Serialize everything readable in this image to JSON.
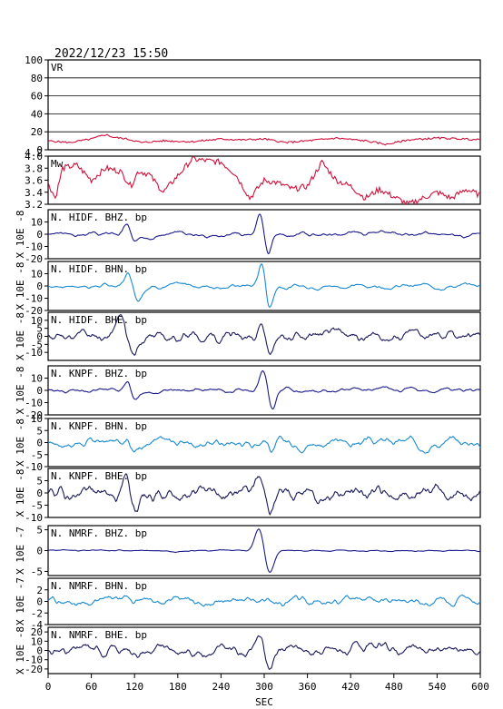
{
  "header": {
    "datetime": "2022/12/23  15:50"
  },
  "chart_data": {
    "type": "line",
    "x_axis": {
      "label": "SEC",
      "range": [
        0,
        600
      ],
      "ticks": [
        "0",
        "60",
        "120",
        "180",
        "240",
        "300",
        "360",
        "420",
        "480",
        "540",
        "600"
      ]
    },
    "panels": [
      {
        "name": "VR",
        "label": "VR",
        "color": "#d0103a",
        "ylim": [
          0,
          100
        ],
        "ticks": [
          "0",
          "20",
          "40",
          "60",
          "80",
          "100"
        ],
        "grid": true,
        "unit": "",
        "x": [
          0,
          30,
          60,
          80,
          90,
          110,
          130,
          160,
          200,
          240,
          270,
          300,
          330,
          360,
          400,
          440,
          470,
          500,
          540,
          580,
          600
        ],
        "y": [
          10,
          8,
          12,
          17,
          14,
          12,
          8,
          10,
          9,
          12,
          11,
          12,
          8,
          10,
          13,
          10,
          6,
          11,
          13,
          12,
          11
        ]
      },
      {
        "name": "Mw",
        "label": "Mw",
        "color": "#d0103a",
        "ylim": [
          3.2,
          4.0
        ],
        "ticks": [
          "3.2",
          "3.4",
          "3.6",
          "3.8",
          "4.0",
          "4.2"
        ],
        "grid": false,
        "unit": "",
        "x": [
          0,
          10,
          20,
          40,
          60,
          80,
          100,
          115,
          125,
          140,
          160,
          200,
          240,
          260,
          280,
          300,
          320,
          340,
          360,
          380,
          400,
          420,
          440,
          460,
          500,
          540,
          560,
          580,
          600
        ],
        "y": [
          3.55,
          3.3,
          3.8,
          3.85,
          3.6,
          3.8,
          3.75,
          3.5,
          3.75,
          3.7,
          3.4,
          3.95,
          3.9,
          3.7,
          3.3,
          3.6,
          3.55,
          3.45,
          3.5,
          3.9,
          3.6,
          3.5,
          3.3,
          3.45,
          3.2,
          3.4,
          3.3,
          3.45,
          3.35
        ]
      },
      {
        "name": "N.HIDF.BHZ.bp",
        "label": "N. HIDF. BHZ. bp",
        "color": "#1a1a8c",
        "ylim": [
          -20,
          20
        ],
        "ticks": [
          "-20",
          "-10",
          "0",
          "10"
        ],
        "unit": "X 10E -8",
        "events": [
          {
            "t": 115,
            "amp": 9,
            "w": 7
          },
          {
            "t": 300,
            "amp": 20,
            "w": 7
          }
        ],
        "noise": 1.5,
        "seed": 3
      },
      {
        "name": "N.HIDF.BHN.bp",
        "label": "N. HIDF. BHN. bp",
        "color": "#1a8ad0",
        "ylim": [
          -20,
          20
        ],
        "ticks": [
          "-20",
          "-10",
          "0",
          "10"
        ],
        "unit": "X 10E -8",
        "events": [
          {
            "t": 118,
            "amp": 12,
            "w": 8
          },
          {
            "t": 302,
            "amp": 20,
            "w": 7
          }
        ],
        "noise": 1.5,
        "seed": 7
      },
      {
        "name": "N.HIDF.BHE.bp",
        "label": "N. HIDF. BHE. bp",
        "color": "#1a1a5c",
        "ylim": [
          -15,
          15
        ],
        "ticks": [
          "-10",
          "-5",
          "0",
          "5",
          "10"
        ],
        "unit": "X 10E -8",
        "events": [
          {
            "t": 110,
            "amp": 14,
            "w": 10
          },
          {
            "t": 302,
            "amp": 12,
            "w": 8
          }
        ],
        "noise": 3,
        "seed": 11
      },
      {
        "name": "N.KNPF.BHZ.bp",
        "label": "N. KNPF. BHZ. bp",
        "color": "#1a1a8c",
        "ylim": [
          -20,
          20
        ],
        "ticks": [
          "-20",
          "-10",
          "0",
          "10"
        ],
        "unit": "X 10E -8",
        "events": [
          {
            "t": 115,
            "amp": 7,
            "w": 7
          },
          {
            "t": 305,
            "amp": 18,
            "w": 8
          }
        ],
        "noise": 1.5,
        "seed": 13
      },
      {
        "name": "N.KNPF.BHN.bp",
        "label": "N. KNPF. BHN. bp",
        "color": "#1a8ad0",
        "ylim": [
          -10,
          10
        ],
        "ticks": [
          "-10",
          "-5",
          "0",
          "5",
          "10"
        ],
        "unit": "X 10E -8",
        "events": [
          {
            "t": 115,
            "amp": 4,
            "w": 7
          },
          {
            "t": 305,
            "amp": 3,
            "w": 7
          }
        ],
        "noise": 1.6,
        "seed": 17
      },
      {
        "name": "N.KNPF.BHE.bp",
        "label": "N. KNPF. BHE. bp",
        "color": "#1a1a5c",
        "ylim": [
          -10,
          10
        ],
        "ticks": [
          "-10",
          "-5",
          "0",
          "5"
        ],
        "unit": "X 10E -8",
        "events": [
          {
            "t": 115,
            "amp": 6,
            "w": 8
          },
          {
            "t": 300,
            "amp": 7,
            "w": 9
          }
        ],
        "noise": 2.6,
        "seed": 19
      },
      {
        "name": "N.NMRF.BHZ.bp",
        "label": "N. NMRF. BHZ. bp",
        "color": "#1a1a8c",
        "ylim": [
          -6,
          6
        ],
        "ticks": [
          "-5",
          "0",
          "5"
        ],
        "unit": "X 10E -7",
        "events": [
          {
            "t": 300,
            "amp": 6,
            "w": 9
          }
        ],
        "noise": 0.15,
        "seed": 23
      },
      {
        "name": "N.NMRF.BHN.bp",
        "label": "N. NMRF. BHN. bp",
        "color": "#1a8ad0",
        "ylim": [
          -4,
          4
        ],
        "ticks": [
          "-4",
          "-2",
          "0",
          "2"
        ],
        "unit": "X 10E -7",
        "events": [],
        "noise": 0.6,
        "seed": 29
      },
      {
        "name": "N.NMRF.BHE.bp",
        "label": "N. NMRF. BHE. bp",
        "color": "#1a1a5c",
        "ylim": [
          -25,
          25
        ],
        "ticks": [
          "-20",
          "-10",
          "0",
          "10",
          "20"
        ],
        "unit": "X 10E -8",
        "events": [
          {
            "t": 300,
            "amp": 22,
            "w": 8
          }
        ],
        "noise": 5,
        "seed": 31
      }
    ]
  }
}
